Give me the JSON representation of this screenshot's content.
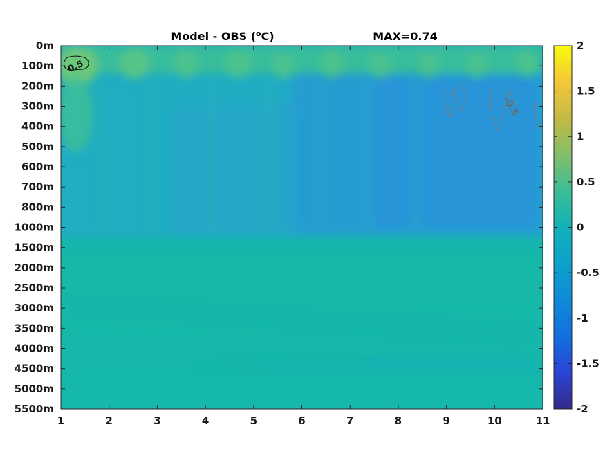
{
  "chart_data": {
    "type": "heatmap",
    "title_parts": {
      "prefix": "Model - OBS (",
      "superscript": "o",
      "suffix": "C)"
    },
    "annotation": "MAX=0.74",
    "x_ticks": [
      "1",
      "2",
      "3",
      "4",
      "5",
      "6",
      "7",
      "8",
      "9",
      "10",
      "11"
    ],
    "xlim": [
      1,
      11
    ],
    "y_ticks": [
      "0m",
      "100m",
      "200m",
      "300m",
      "400m",
      "500m",
      "600m",
      "700m",
      "800m",
      "1000m",
      "1500m",
      "2000m",
      "2500m",
      "3000m",
      "3500m",
      "4000m",
      "4500m",
      "5000m",
      "5500m"
    ],
    "colorbar": {
      "ticks": [
        "2",
        "1.5",
        "1",
        "0.5",
        "0",
        "-0.5",
        "-1",
        "-1.5",
        "-2"
      ],
      "range": [
        -2,
        2
      ],
      "colormap": "parula"
    },
    "contour_labels": [
      {
        "text": "0.5",
        "x": 1.3,
        "depth": "100m",
        "color": "#111111"
      },
      {
        "text": "-0.5",
        "x": 10.35,
        "depth": "300m",
        "color": "#6b6b6b"
      }
    ],
    "colors": {
      "surface_warm": "#4fc68a",
      "upper_cool": "#24aac8",
      "cool_pocket": "#2792db",
      "deep_base": "#17b8a6"
    }
  }
}
